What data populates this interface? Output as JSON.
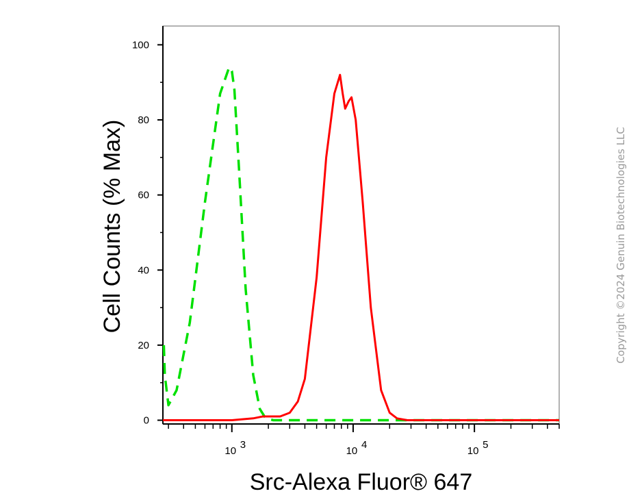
{
  "chart_data": {
    "type": "line",
    "title": "",
    "xlabel": "Src-Alexa Fluor® 647",
    "ylabel": "Cell Counts (% Max)",
    "xscale": "log",
    "xlim": [
      270,
      500000
    ],
    "ylim": [
      -1,
      105
    ],
    "grid": false,
    "y_ticks": [
      0,
      20,
      40,
      60,
      80,
      100
    ],
    "y_tick_labels": [
      "0",
      "20",
      "40",
      "60",
      "80",
      "100"
    ],
    "x_ticks": [
      1000,
      10000,
      100000
    ],
    "x_tick_labels": [
      {
        "base": "10",
        "exp": "3"
      },
      {
        "base": "10",
        "exp": "4"
      },
      {
        "base": "10",
        "exp": "5"
      }
    ],
    "series": [
      {
        "color": "#00e000",
        "style": "dashed",
        "x": [
          275,
          280,
          300,
          350,
          450,
          600,
          800,
          950,
          1000,
          1050,
          1150,
          1300,
          1500,
          1700,
          1900,
          2200,
          3000,
          8000,
          20000,
          100000,
          500000
        ],
        "y": [
          20,
          12,
          4,
          8,
          26,
          58,
          87,
          94,
          93,
          88,
          66,
          35,
          12,
          3,
          0.5,
          0,
          0,
          0,
          0,
          0,
          0
        ]
      },
      {
        "color": "#ff0000",
        "style": "solid",
        "x": [
          270,
          1000,
          1500,
          1800,
          2500,
          3000,
          3500,
          4000,
          5000,
          6000,
          7000,
          7800,
          8200,
          8600,
          9200,
          9700,
          10500,
          12000,
          14000,
          17000,
          20000,
          23000,
          28000,
          50000,
          500000
        ],
        "y": [
          0,
          0,
          0.5,
          1,
          1,
          2,
          5,
          11,
          38,
          70,
          87,
          92,
          87,
          83,
          85,
          86,
          80,
          58,
          30,
          8,
          2,
          0.5,
          0,
          0,
          0
        ]
      }
    ]
  },
  "watermark": "Copyright ©2024 Genuin Biotechnologies LLC"
}
